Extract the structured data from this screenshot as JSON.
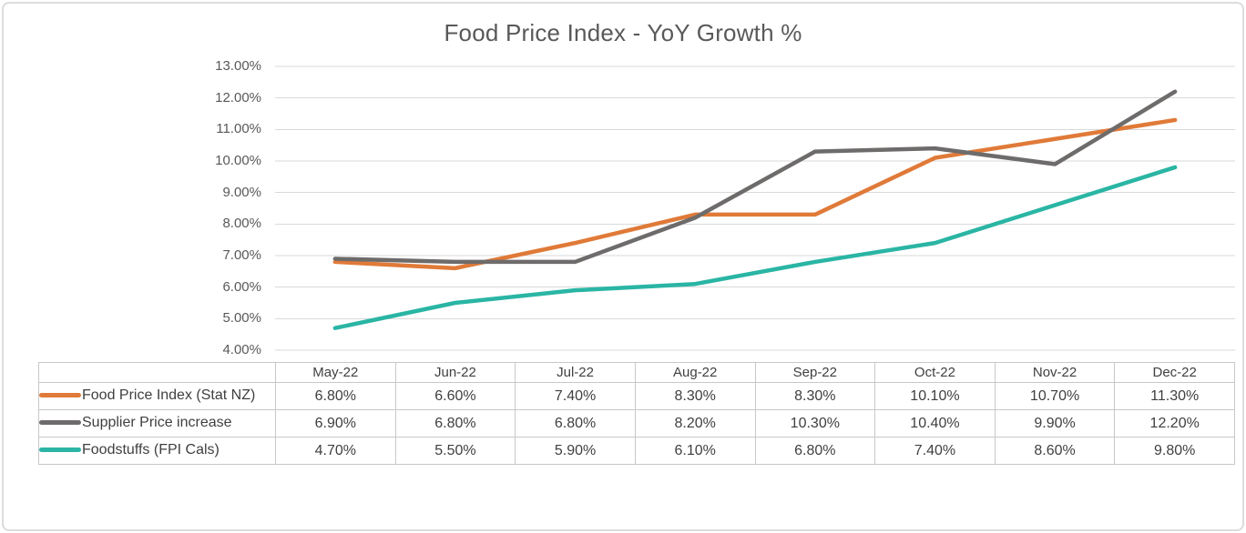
{
  "colors": {
    "axis_text": "#595959",
    "table_text": "#3f3f3f",
    "gridline": "#d9d9d9",
    "table_border": "#c8c8c8",
    "frame_border": "#dcdcdc"
  },
  "chart_data": {
    "type": "line",
    "title": "Food Price Index - YoY Growth %",
    "categories": [
      "May-22",
      "Jun-22",
      "Jul-22",
      "Aug-22",
      "Sep-22",
      "Oct-22",
      "Nov-22",
      "Dec-22"
    ],
    "series": [
      {
        "name": "Food Price Index (Stat NZ)",
        "color": "#e07a38",
        "values": [
          6.8,
          6.6,
          7.4,
          8.3,
          8.3,
          10.1,
          10.7,
          11.3
        ],
        "display": [
          "6.80%",
          "6.60%",
          "7.40%",
          "8.30%",
          "8.30%",
          "10.10%",
          "10.70%",
          "11.30%"
        ]
      },
      {
        "name": "Supplier Price increase",
        "color": "#6e6b6b",
        "values": [
          6.9,
          6.8,
          6.8,
          8.2,
          10.3,
          10.4,
          9.9,
          12.2
        ],
        "display": [
          "6.90%",
          "6.80%",
          "6.80%",
          "8.20%",
          "10.30%",
          "10.40%",
          "9.90%",
          "12.20%"
        ]
      },
      {
        "name": "Foodstuffs (FPI Cals)",
        "color": "#2ab5a4",
        "values": [
          4.7,
          5.5,
          5.9,
          6.1,
          6.8,
          7.4,
          8.6,
          9.8
        ],
        "display": [
          "4.70%",
          "5.50%",
          "5.90%",
          "6.10%",
          "6.80%",
          "7.40%",
          "8.60%",
          "9.80%"
        ]
      }
    ],
    "y_axis": {
      "min": 4,
      "max": 13,
      "step": 1,
      "tick_labels": [
        "13.00%",
        "12.00%",
        "11.00%",
        "10.00%",
        "9.00%",
        "8.00%",
        "7.00%",
        "6.00%",
        "5.00%",
        "4.00%"
      ]
    },
    "grid": "horizontal-on",
    "legend_position": "table-row-labels"
  }
}
